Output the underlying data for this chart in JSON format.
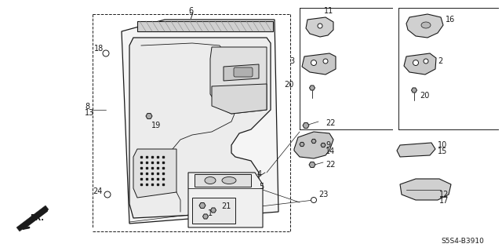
{
  "bg_color": "#ffffff",
  "line_color": "#1a1a1a",
  "diagram_code": "S5S4-B3910",
  "figsize": [
    6.4,
    3.2
  ],
  "dpi": 100
}
